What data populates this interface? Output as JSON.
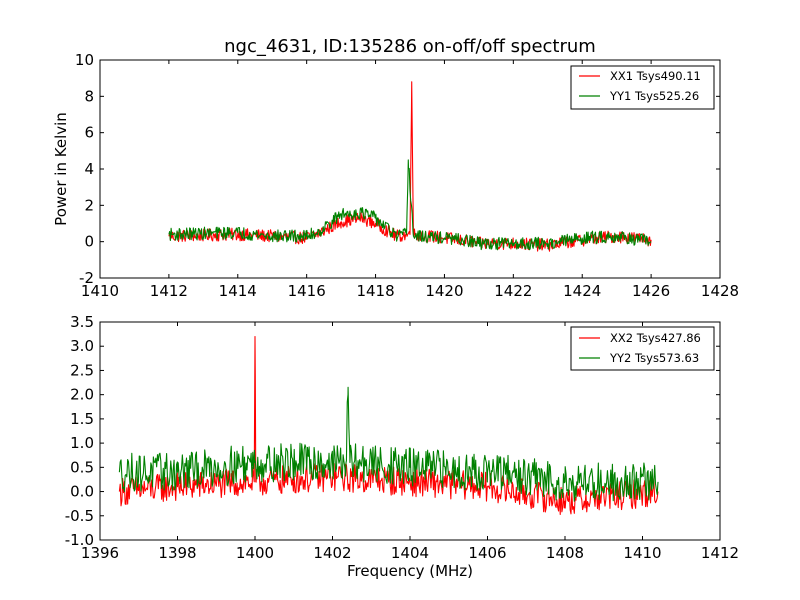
{
  "chart_data": [
    {
      "type": "line",
      "title": "ngc_4631, ID:135286 on-off/off spectrum",
      "xlabel": "",
      "ylabel": "Power in Kelvin",
      "xlim": [
        1410,
        1428
      ],
      "ylim": [
        -2,
        10
      ],
      "xticks": [
        1410,
        1412,
        1414,
        1416,
        1418,
        1420,
        1422,
        1424,
        1426,
        1428
      ],
      "yticks": [
        -2,
        0,
        2,
        4,
        6,
        8,
        10
      ],
      "grid": false,
      "legend_position": "top-right",
      "x_range_data": [
        1412,
        1426
      ],
      "series": [
        {
          "name": "XX1 Tsys490.11",
          "color": "#ff0000",
          "x": [
            1412,
            1414,
            1415,
            1416,
            1416.4,
            1417,
            1417.6,
            1418,
            1418.6,
            1419,
            1419.05,
            1419.1,
            1420,
            1420.8,
            1421,
            1422,
            1423,
            1424,
            1425,
            1426
          ],
          "y": [
            0.3,
            0.4,
            0.3,
            0.2,
            0.5,
            1.1,
            1.3,
            1.0,
            0.3,
            0.4,
            8.8,
            0.4,
            0.2,
            0.0,
            -0.1,
            -0.1,
            -0.2,
            0.1,
            0.3,
            0.1
          ],
          "noise": 0.35
        },
        {
          "name": "YY1 Tsys525.26",
          "color": "#008000",
          "x": [
            1412,
            1414,
            1415,
            1416,
            1416.4,
            1417,
            1417.6,
            1418,
            1418.6,
            1418.9,
            1418.95,
            1419.1,
            1420,
            1420.8,
            1421,
            1422,
            1423,
            1424,
            1425,
            1426
          ],
          "y": [
            0.4,
            0.5,
            0.3,
            0.3,
            0.6,
            1.5,
            1.6,
            1.3,
            0.3,
            0.4,
            4.5,
            0.3,
            0.2,
            0.0,
            -0.1,
            -0.1,
            -0.1,
            0.2,
            0.3,
            0.0
          ],
          "noise": 0.35
        }
      ]
    },
    {
      "type": "line",
      "title": "",
      "xlabel": "Frequency (MHz)",
      "ylabel": "",
      "xlim": [
        1396,
        1412
      ],
      "ylim": [
        -1.0,
        3.5
      ],
      "xticks": [
        1396,
        1398,
        1400,
        1402,
        1404,
        1406,
        1408,
        1410,
        1412
      ],
      "yticks": [
        -1.0,
        -0.5,
        0.0,
        0.5,
        1.0,
        1.5,
        2.0,
        2.5,
        3.0,
        3.5
      ],
      "grid": false,
      "legend_position": "top-right",
      "x_range_data": [
        1396.5,
        1410.4
      ],
      "series": [
        {
          "name": "XX2 Tsys427.86",
          "color": "#ff0000",
          "x": [
            1396.5,
            1398,
            1399.98,
            1400.0,
            1400.02,
            1402,
            1404,
            1406,
            1408,
            1410.4
          ],
          "y": [
            0.0,
            0.1,
            0.2,
            3.2,
            0.2,
            0.3,
            0.2,
            0.1,
            -0.2,
            0.0
          ],
          "noise": 0.3
        },
        {
          "name": "YY2 Tsys573.63",
          "color": "#008000",
          "x": [
            1396.5,
            1398,
            1400,
            1402,
            1402.35,
            1402.4,
            1402.45,
            1404,
            1406,
            1408,
            1410.4
          ],
          "y": [
            0.4,
            0.4,
            0.6,
            0.6,
            0.6,
            2.0,
            0.6,
            0.5,
            0.4,
            0.2,
            0.2
          ],
          "noise": 0.4
        }
      ]
    }
  ]
}
